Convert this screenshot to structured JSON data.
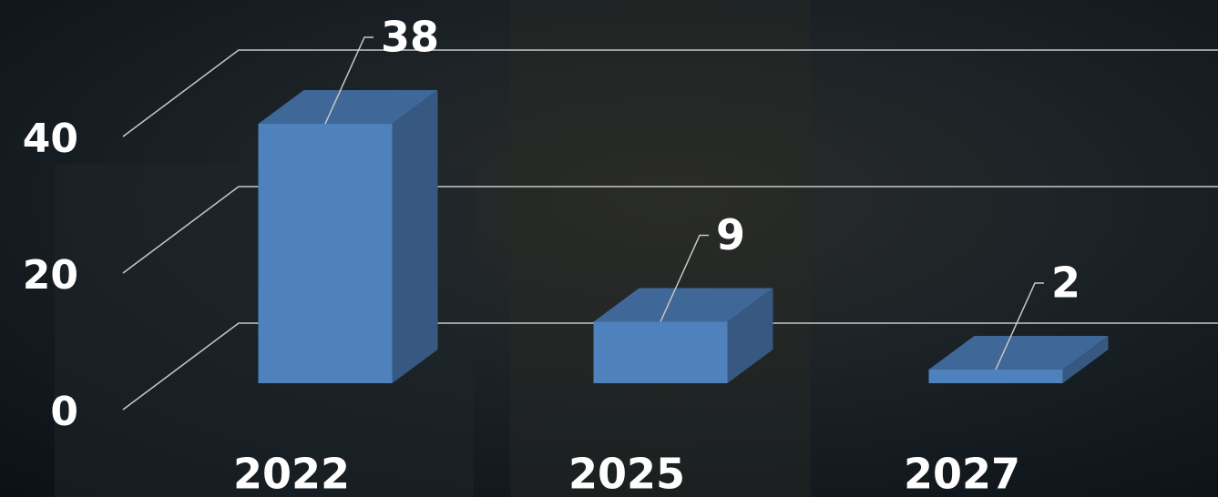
{
  "chart_data": {
    "type": "bar3d",
    "categories": [
      "2022",
      "2025",
      "2027"
    ],
    "values": [
      38,
      9,
      2
    ],
    "color": "#4f81bd",
    "ylim": [
      0,
      40
    ],
    "yticks": [
      0,
      20,
      40
    ],
    "grid": true
  }
}
